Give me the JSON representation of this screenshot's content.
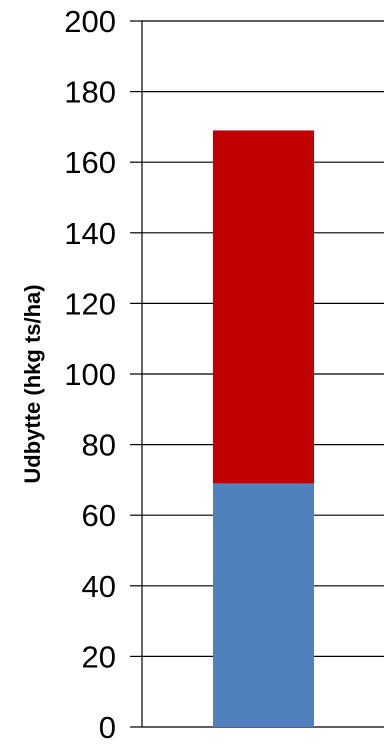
{
  "chart_data": {
    "type": "bar",
    "stacked": true,
    "title": "",
    "xlabel": "",
    "ylabel": "Udbytte (hkg ts/ha)",
    "ylim": [
      0,
      200
    ],
    "yticks": [
      0,
      20,
      40,
      60,
      80,
      100,
      120,
      140,
      160,
      180,
      200
    ],
    "categories": [
      ""
    ],
    "grid": true,
    "legend": "none",
    "series": [
      {
        "values": [
          69
        ],
        "color": "#4F81BD"
      },
      {
        "values": [
          100
        ],
        "color": "#C00000"
      }
    ]
  }
}
